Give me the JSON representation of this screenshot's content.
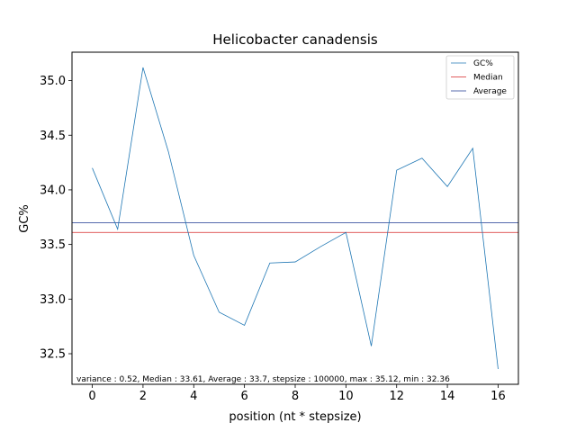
{
  "chart_data": {
    "type": "line",
    "title": "Helicobacter canadensis",
    "xlabel": "position (nt * stepsize)",
    "ylabel": "GC%",
    "xlim": [
      -0.8,
      16.8
    ],
    "ylim": [
      32.22,
      35.26
    ],
    "xticks": [
      0,
      2,
      4,
      6,
      8,
      10,
      12,
      14,
      16
    ],
    "yticks": [
      32.5,
      33.0,
      33.5,
      34.0,
      34.5,
      35.0
    ],
    "xtick_labels": [
      "0",
      "2",
      "4",
      "6",
      "8",
      "10",
      "12",
      "14",
      "16"
    ],
    "ytick_labels": [
      "32.5",
      "33.0",
      "33.5",
      "34.0",
      "34.5",
      "35.0"
    ],
    "grid": false,
    "legend_position": "top-right",
    "series": [
      {
        "name": "GC%",
        "color": "#1f77b4",
        "x": [
          0,
          1,
          2,
          3,
          4,
          5,
          6,
          7,
          8,
          9,
          10,
          11,
          12,
          13,
          14,
          15,
          16
        ],
        "values": [
          34.2,
          33.64,
          35.12,
          34.35,
          33.4,
          32.88,
          32.76,
          33.33,
          33.34,
          33.48,
          33.61,
          32.57,
          34.18,
          34.29,
          34.03,
          34.38,
          32.36
        ]
      },
      {
        "name": "Median",
        "color": "#d62728",
        "value": 33.61
      },
      {
        "name": "Average",
        "color": "#1f3a93",
        "value": 33.7
      }
    ],
    "annotation": "variance : 0.52, Median : 33.61, Average : 33.7, stepsize : 100000, max : 35.12, min : 32.36"
  }
}
